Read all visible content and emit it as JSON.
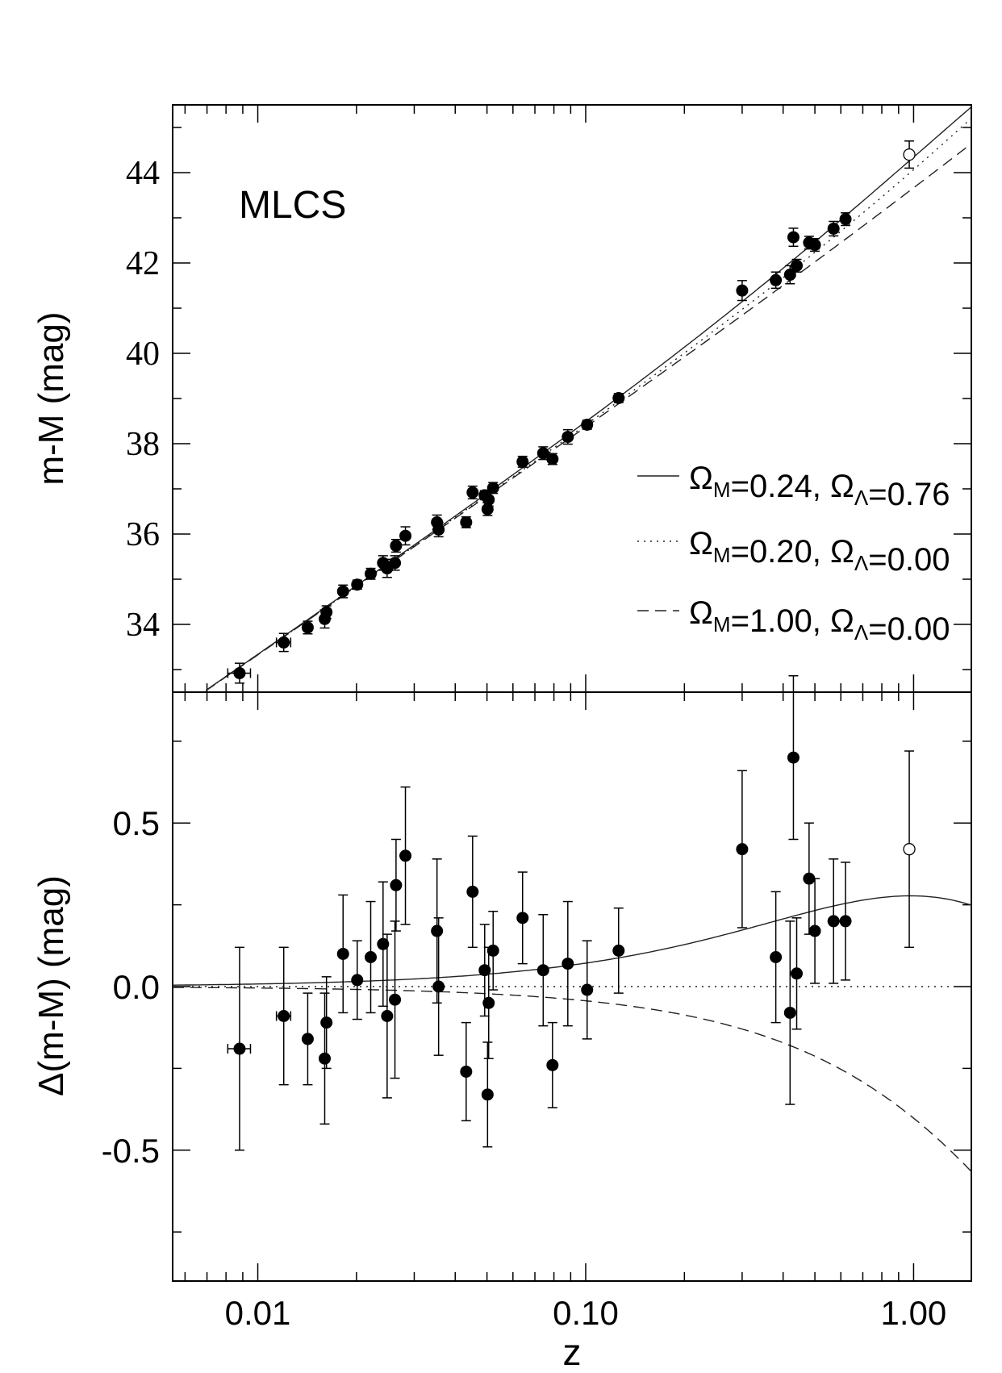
{
  "chart_data": [
    {
      "type": "scatter",
      "panel": "top",
      "title": "",
      "annotation": "MLCS",
      "xlabel": "z",
      "ylabel": "m-M (mag)",
      "xscale": "log",
      "xlim": [
        0.0055,
        1.5
      ],
      "ylim": [
        32.5,
        45.5
      ],
      "yticks": [
        34,
        36,
        38,
        40,
        42,
        44
      ],
      "ytick_labels": [
        "34",
        "36",
        "38",
        "40",
        "42",
        "44"
      ],
      "legend_placement": "lower-right",
      "legend": [
        {
          "style": "solid",
          "label_main": "Ω",
          "sub1": "M",
          "mid": "=0.24, Ω",
          "sub2": "Λ",
          "tail": "=0.76"
        },
        {
          "style": "dotted",
          "label_main": "Ω",
          "sub1": "M",
          "mid": "=0.20, Ω",
          "sub2": "Λ",
          "tail": "=0.00"
        },
        {
          "style": "dashed",
          "label_main": "Ω",
          "sub1": "M",
          "mid": "=1.00, Ω",
          "sub2": "Λ",
          "tail": "=0.00"
        }
      ],
      "points": [
        {
          "z": 0.0088,
          "y": 32.92,
          "err": 0.22,
          "xerr": 0.0007
        },
        {
          "z": 0.012,
          "y": 33.6,
          "err": 0.2,
          "xerr": 0.0006
        },
        {
          "z": 0.0142,
          "y": 33.93,
          "err": 0.14
        },
        {
          "z": 0.016,
          "y": 34.12,
          "err": 0.2
        },
        {
          "z": 0.0162,
          "y": 34.27,
          "err": 0.14
        },
        {
          "z": 0.0182,
          "y": 34.73,
          "err": 0.14
        },
        {
          "z": 0.0201,
          "y": 34.88,
          "err": 0.1
        },
        {
          "z": 0.0221,
          "y": 35.12,
          "err": 0.12
        },
        {
          "z": 0.0241,
          "y": 35.36,
          "err": 0.16
        },
        {
          "z": 0.0248,
          "y": 35.24,
          "err": 0.2
        },
        {
          "z": 0.0262,
          "y": 35.36,
          "err": 0.16
        },
        {
          "z": 0.0264,
          "y": 35.74,
          "err": 0.14
        },
        {
          "z": 0.0282,
          "y": 35.96,
          "err": 0.2
        },
        {
          "z": 0.0352,
          "y": 36.26,
          "err": 0.16
        },
        {
          "z": 0.0356,
          "y": 36.1,
          "err": 0.16
        },
        {
          "z": 0.0432,
          "y": 36.26,
          "err": 0.12
        },
        {
          "z": 0.0452,
          "y": 36.92,
          "err": 0.14
        },
        {
          "z": 0.0492,
          "y": 36.86,
          "err": 0.1
        },
        {
          "z": 0.0502,
          "y": 36.55,
          "err": 0.14
        },
        {
          "z": 0.0506,
          "y": 36.76,
          "err": 0.14
        },
        {
          "z": 0.0522,
          "y": 37.02,
          "err": 0.12
        },
        {
          "z": 0.0642,
          "y": 37.6,
          "err": 0.12
        },
        {
          "z": 0.0742,
          "y": 37.79,
          "err": 0.14
        },
        {
          "z": 0.0792,
          "y": 37.66,
          "err": 0.12
        },
        {
          "z": 0.0882,
          "y": 38.15,
          "err": 0.16
        },
        {
          "z": 0.101,
          "y": 38.42,
          "err": 0.1
        },
        {
          "z": 0.126,
          "y": 39.01,
          "err": 0.1
        },
        {
          "z": 0.3,
          "y": 41.39,
          "err": 0.22
        },
        {
          "z": 0.38,
          "y": 41.62,
          "err": 0.18
        },
        {
          "z": 0.42,
          "y": 41.74,
          "err": 0.2
        },
        {
          "z": 0.43,
          "y": 42.57,
          "err": 0.2
        },
        {
          "z": 0.44,
          "y": 41.94,
          "err": 0.14
        },
        {
          "z": 0.48,
          "y": 42.45,
          "err": 0.14
        },
        {
          "z": 0.5,
          "y": 42.4,
          "err": 0.14
        },
        {
          "z": 0.57,
          "y": 42.76,
          "err": 0.16
        },
        {
          "z": 0.62,
          "y": 42.97,
          "err": 0.14
        },
        {
          "z": 0.97,
          "y": 44.4,
          "err": 0.3,
          "open": true
        }
      ]
    },
    {
      "type": "scatter",
      "panel": "bottom",
      "title": "",
      "xlabel": "z",
      "ylabel": "Δ(m-M) (mag)",
      "xscale": "log",
      "xlim": [
        0.0055,
        1.5
      ],
      "ylim": [
        -0.9,
        0.9
      ],
      "xticks": [
        0.01,
        0.1,
        1.0
      ],
      "xtick_labels": [
        "0.01",
        "0.10",
        "1.00"
      ],
      "yticks": [
        -0.5,
        0.0,
        0.5
      ],
      "ytick_labels": [
        "-0.5",
        "0.0",
        "0.5"
      ],
      "points": [
        {
          "z": 0.0088,
          "y": -0.19,
          "err": 0.31,
          "xerr": 0.0007
        },
        {
          "z": 0.012,
          "y": -0.09,
          "err": 0.21,
          "xerr": 0.0006
        },
        {
          "z": 0.0142,
          "y": -0.16,
          "err": 0.14
        },
        {
          "z": 0.016,
          "y": -0.22,
          "err": 0.2
        },
        {
          "z": 0.0162,
          "y": -0.11,
          "err": 0.14
        },
        {
          "z": 0.0182,
          "y": 0.1,
          "err": 0.18
        },
        {
          "z": 0.0201,
          "y": 0.02,
          "err": 0.12
        },
        {
          "z": 0.0221,
          "y": 0.09,
          "err": 0.17
        },
        {
          "z": 0.0241,
          "y": 0.13,
          "err": 0.19
        },
        {
          "z": 0.0248,
          "y": -0.09,
          "err": 0.25
        },
        {
          "z": 0.0262,
          "y": -0.04,
          "err": 0.24
        },
        {
          "z": 0.0264,
          "y": 0.31,
          "err": 0.14
        },
        {
          "z": 0.0282,
          "y": 0.4,
          "err": 0.21
        },
        {
          "z": 0.0352,
          "y": 0.17,
          "err": 0.22
        },
        {
          "z": 0.0356,
          "y": 0.0,
          "err": 0.21
        },
        {
          "z": 0.0432,
          "y": -0.26,
          "err": 0.15
        },
        {
          "z": 0.0452,
          "y": 0.29,
          "err": 0.17
        },
        {
          "z": 0.0492,
          "y": 0.05,
          "err": 0.14
        },
        {
          "z": 0.0502,
          "y": -0.33,
          "err": 0.16
        },
        {
          "z": 0.0506,
          "y": -0.05,
          "err": 0.17
        },
        {
          "z": 0.0522,
          "y": 0.11,
          "err": 0.12
        },
        {
          "z": 0.0642,
          "y": 0.21,
          "err": 0.14
        },
        {
          "z": 0.0742,
          "y": 0.05,
          "err": 0.17
        },
        {
          "z": 0.0792,
          "y": -0.24,
          "err": 0.13
        },
        {
          "z": 0.0882,
          "y": 0.07,
          "err": 0.19
        },
        {
          "z": 0.101,
          "y": -0.01,
          "err": 0.15
        },
        {
          "z": 0.126,
          "y": 0.11,
          "err": 0.13
        },
        {
          "z": 0.3,
          "y": 0.42,
          "err": 0.24
        },
        {
          "z": 0.38,
          "y": 0.09,
          "err": 0.2
        },
        {
          "z": 0.42,
          "y": -0.08,
          "err": 0.28
        },
        {
          "z": 0.43,
          "y": 0.7,
          "err": 0.25
        },
        {
          "z": 0.44,
          "y": 0.04,
          "err": 0.17
        },
        {
          "z": 0.48,
          "y": 0.33,
          "err": 0.17
        },
        {
          "z": 0.5,
          "y": 0.17,
          "err": 0.16
        },
        {
          "z": 0.57,
          "y": 0.2,
          "err": 0.19
        },
        {
          "z": 0.62,
          "y": 0.2,
          "err": 0.18
        },
        {
          "z": 0.97,
          "y": 0.42,
          "err": 0.3,
          "open": true
        }
      ]
    }
  ]
}
